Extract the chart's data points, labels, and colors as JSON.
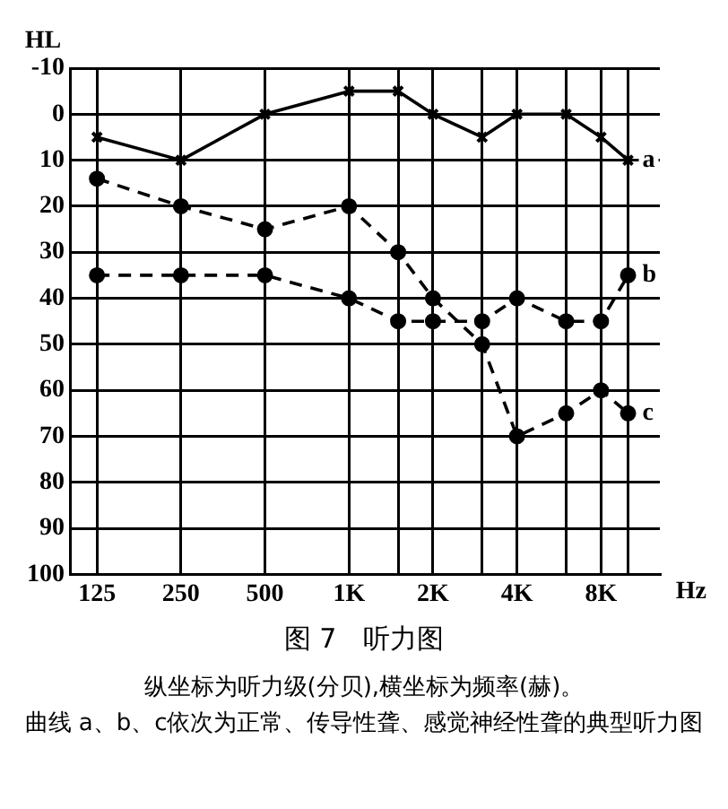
{
  "chart_data": {
    "type": "line",
    "title": "图 7　听力图",
    "ylabel": "HL",
    "xlabel": "Hz",
    "annotations": [
      "纵坐标为听力级(分贝),横坐标为频率(赫)。",
      "曲线 a、b、c依次为正常、传导性聋、感觉神经性聋的典型听力图"
    ],
    "x": [
      125,
      250,
      500,
      1000,
      1500,
      2000,
      3000,
      4000,
      6000,
      8000,
      10000
    ],
    "series": [
      {
        "name": "a",
        "color": "#000000",
        "marker": "cross",
        "line_style": "solid",
        "values": [
          5,
          10,
          0,
          -5,
          -5,
          0,
          5,
          0,
          0,
          5,
          10
        ]
      },
      {
        "name": "b",
        "color": "#000000",
        "marker": "circle",
        "line_style": "dashed",
        "values": [
          35,
          35,
          35,
          40,
          45,
          45,
          45,
          40,
          45,
          45,
          35
        ]
      },
      {
        "name": "c",
        "color": "#000000",
        "marker": "circle",
        "line_style": "dashed",
        "values": [
          14,
          20,
          25,
          20,
          30,
          40,
          50,
          70,
          65,
          60,
          65
        ]
      }
    ],
    "log": "x",
    "xlim": [
      100,
      13000
    ],
    "xticks": [
      125,
      250,
      500,
      {
        "value": 1000,
        "label": "1K"
      },
      {
        "value": 1500,
        "label": null
      },
      {
        "value": 2000,
        "label": "2K"
      },
      {
        "value": 3000,
        "label": null
      },
      {
        "value": 4000,
        "label": "4K"
      },
      {
        "value": 6000,
        "label": null
      },
      {
        "value": 8000,
        "label": "8K"
      },
      {
        "value": 10000,
        "label": null
      }
    ],
    "ylim": [
      100,
      -10
    ],
    "yticks": [
      -10,
      0,
      10,
      20,
      30,
      40,
      50,
      60,
      70,
      80,
      90,
      100
    ],
    "grid": true,
    "legend": false
  }
}
